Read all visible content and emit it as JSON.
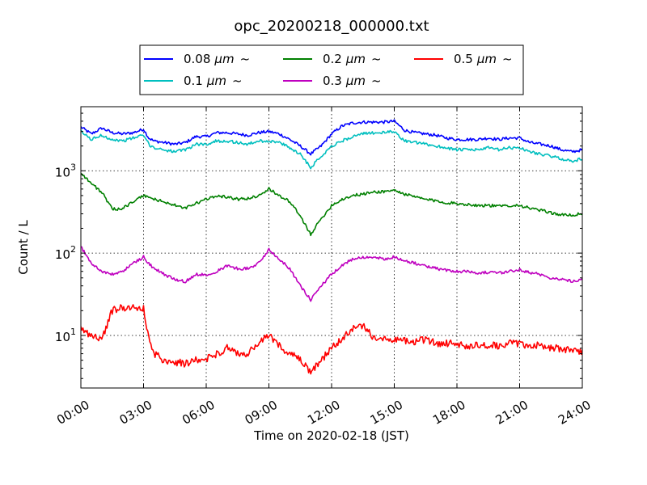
{
  "chart_data": {
    "type": "line",
    "title": "opc_20200218_000000.txt",
    "xlabel": "Time on 2020-02-18 (JST)",
    "ylabel": "Count / L",
    "x_unit": "hours",
    "xlim": [
      0,
      24
    ],
    "x_ticks": [
      0,
      3,
      6,
      9,
      12,
      15,
      18,
      21,
      24
    ],
    "x_tick_labels": [
      "00:00",
      "03:00",
      "06:00",
      "09:00",
      "12:00",
      "15:00",
      "18:00",
      "21:00",
      "24:00"
    ],
    "y_scale": "log",
    "ylim": [
      2.3,
      6000
    ],
    "y_ticks": [
      10,
      100,
      1000
    ],
    "y_tick_labels": [
      {
        "base": "10",
        "exp": "1"
      },
      {
        "base": "10",
        "exp": "2"
      },
      {
        "base": "10",
        "exp": "3"
      }
    ],
    "grid": true,
    "legend_position": "top",
    "legend_entries": [
      {
        "series": 0,
        "label": "0.08",
        "unit": "μm",
        "suffix": "~"
      },
      {
        "series": 2,
        "label": "0.2",
        "unit": "μm",
        "suffix": "~"
      },
      {
        "series": 4,
        "label": "0.5",
        "unit": "μm",
        "suffix": "~"
      },
      {
        "series": 1,
        "label": "0.1",
        "unit": "μm",
        "suffix": "~"
      },
      {
        "series": 3,
        "label": "0.3",
        "unit": "μm",
        "suffix": "~"
      }
    ],
    "x": [
      0,
      0.5,
      1,
      1.5,
      2,
      2.5,
      3,
      3.25,
      3.5,
      4,
      4.5,
      5,
      5.5,
      6,
      6.5,
      7,
      7.5,
      8,
      8.5,
      9,
      9.5,
      10,
      10.5,
      11,
      11.5,
      12,
      12.5,
      13,
      13.5,
      14,
      14.5,
      15,
      15.5,
      16,
      16.5,
      17,
      17.5,
      18,
      18.5,
      19,
      19.5,
      20,
      20.5,
      21,
      21.5,
      22,
      22.5,
      23,
      23.5,
      24
    ],
    "series": [
      {
        "name": "0.08 μm ~",
        "color": "#0000ff",
        "values": [
          3400,
          2800,
          3300,
          2900,
          2800,
          2900,
          3200,
          2500,
          2300,
          2200,
          2100,
          2200,
          2600,
          2600,
          2900,
          2900,
          2800,
          2700,
          2900,
          3000,
          2800,
          2400,
          2000,
          1600,
          2000,
          2800,
          3500,
          3800,
          3900,
          3900,
          3900,
          4000,
          3100,
          2900,
          2800,
          2700,
          2500,
          2400,
          2400,
          2400,
          2500,
          2400,
          2500,
          2500,
          2200,
          2100,
          2000,
          1800,
          1700,
          1800
        ]
      },
      {
        "name": "0.1 μm ~",
        "color": "#00bfbf",
        "values": [
          3000,
          2400,
          2700,
          2400,
          2300,
          2500,
          2700,
          2100,
          1900,
          1800,
          1700,
          1800,
          2100,
          2100,
          2300,
          2300,
          2200,
          2100,
          2300,
          2300,
          2200,
          1900,
          1600,
          1100,
          1500,
          2000,
          2300,
          2600,
          2800,
          2900,
          2900,
          3000,
          2300,
          2200,
          2100,
          2000,
          1900,
          1800,
          1800,
          1800,
          1900,
          1800,
          1900,
          1900,
          1700,
          1600,
          1500,
          1400,
          1300,
          1400
        ]
      },
      {
        "name": "0.2 μm ~",
        "color": "#008000",
        "values": [
          950,
          700,
          550,
          340,
          350,
          420,
          500,
          480,
          450,
          420,
          380,
          350,
          400,
          450,
          500,
          480,
          450,
          460,
          500,
          600,
          500,
          420,
          280,
          170,
          260,
          380,
          450,
          500,
          520,
          550,
          560,
          580,
          520,
          480,
          450,
          430,
          410,
          400,
          390,
          380,
          380,
          370,
          380,
          380,
          350,
          330,
          310,
          290,
          290,
          300
        ]
      },
      {
        "name": "0.3 μm ~",
        "color": "#bf00bf",
        "values": [
          120,
          75,
          60,
          55,
          60,
          75,
          90,
          75,
          65,
          55,
          48,
          45,
          55,
          55,
          60,
          70,
          65,
          65,
          75,
          110,
          85,
          65,
          40,
          27,
          40,
          55,
          70,
          85,
          90,
          88,
          85,
          90,
          80,
          75,
          70,
          65,
          62,
          60,
          60,
          58,
          58,
          57,
          60,
          63,
          58,
          55,
          50,
          48,
          46,
          48
        ]
      },
      {
        "name": "0.5 μm ~",
        "color": "#ff0000",
        "values": [
          12,
          10,
          9,
          20,
          22,
          22,
          21,
          9,
          6,
          5,
          4.8,
          4.5,
          5,
          5.2,
          6,
          7,
          6,
          6,
          8,
          10,
          7.5,
          6,
          5,
          3.5,
          5,
          7,
          9,
          12,
          13,
          9.5,
          9.5,
          9,
          8.5,
          8.5,
          9,
          8,
          8,
          8,
          7.5,
          7.5,
          7.5,
          7.5,
          8,
          8,
          7.5,
          7.5,
          7,
          7,
          6.5,
          6.5
        ]
      }
    ]
  }
}
